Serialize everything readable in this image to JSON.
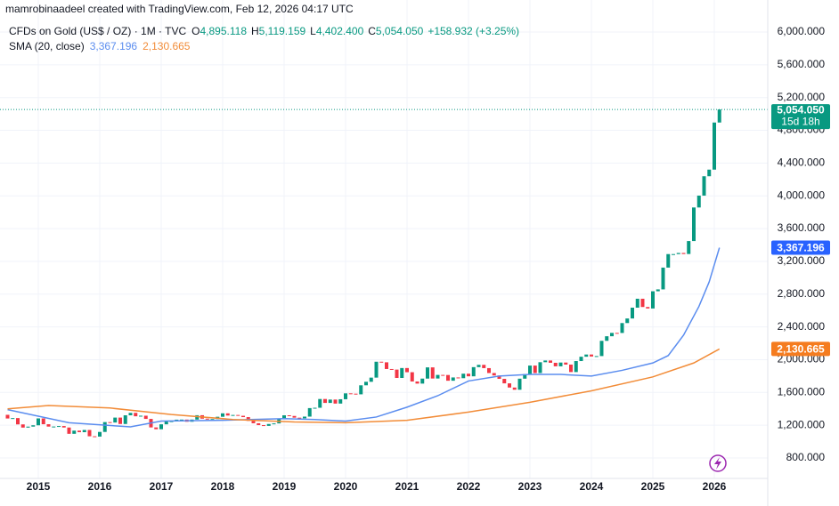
{
  "chart_data": {
    "type": "candlestick",
    "title": "mamrobinaadeel created with TradingView.com, Feb 12, 2026 04:17 UTC",
    "symbol": "CFDs on Gold (US$ / OZ) · 1M · TVC",
    "ohlc": [
      {
        "key": "O",
        "label": "4,895.118"
      },
      {
        "key": "H",
        "label": "5,119.159"
      },
      {
        "key": "L",
        "label": "4,402.400"
      },
      {
        "key": "C",
        "label": "5,054.050"
      }
    ],
    "change": "+158.932 (+3.25%)",
    "countdown": "15d 18h",
    "up_color": "#089981",
    "down_color": "#f23645",
    "categories": [
      null,
      null,
      null,
      null,
      null,
      null,
      "2015",
      null,
      null,
      null,
      null,
      null,
      null,
      null,
      null,
      null,
      null,
      null,
      "2016",
      null,
      null,
      null,
      null,
      null,
      null,
      null,
      null,
      null,
      null,
      null,
      "2017",
      null,
      null,
      null,
      null,
      null,
      null,
      null,
      null,
      null,
      null,
      null,
      "2018",
      null,
      null,
      null,
      null,
      null,
      null,
      null,
      null,
      null,
      null,
      null,
      "2019",
      null,
      null,
      null,
      null,
      null,
      null,
      null,
      null,
      null,
      null,
      null,
      "2020",
      null,
      null,
      null,
      null,
      null,
      null,
      null,
      null,
      null,
      null,
      null,
      "2021",
      null,
      null,
      null,
      null,
      null,
      null,
      null,
      null,
      null,
      null,
      null,
      "2022",
      null,
      null,
      null,
      null,
      null,
      null,
      null,
      null,
      null,
      null,
      null,
      "2023",
      null,
      null,
      null,
      null,
      null,
      null,
      null,
      null,
      null,
      null,
      null,
      "2024",
      null,
      null,
      null,
      null,
      null,
      null,
      null,
      null,
      null,
      null,
      null,
      "2025",
      null,
      null,
      null,
      null,
      null,
      null,
      null,
      null,
      null,
      null,
      null,
      "2026",
      null
    ],
    "open": 1327,
    "values": [
      1282,
      1287,
      1210,
      1171,
      1183,
      1199,
      1283,
      1212,
      1183,
      1184,
      1190,
      1172,
      1095,
      1134,
      1115,
      1142,
      1065,
      1061,
      1118,
      1238,
      1233,
      1293,
      1215,
      1321,
      1351,
      1309,
      1316,
      1277,
      1173,
      1151,
      1211,
      1249,
      1249,
      1268,
      1269,
      1242,
      1269,
      1322,
      1280,
      1271,
      1275,
      1303,
      1345,
      1318,
      1325,
      1315,
      1299,
      1253,
      1224,
      1201,
      1192,
      1215,
      1222,
      1282,
      1321,
      1313,
      1292,
      1284,
      1305,
      1409,
      1413,
      1520,
      1472,
      1513,
      1464,
      1517,
      1589,
      1585,
      1577,
      1687,
      1730,
      1781,
      1975,
      1968,
      1886,
      1879,
      1777,
      1898,
      1847,
      1734,
      1708,
      1769,
      1906,
      1770,
      1814,
      1813,
      1743,
      1783,
      1774,
      1829,
      1797,
      1909,
      1937,
      1897,
      1837,
      1807,
      1766,
      1711,
      1660,
      1633,
      1768,
      1824,
      1928,
      1837,
      1969,
      1990,
      1962,
      1919,
      1965,
      1940,
      1849,
      1983,
      2036,
      2063,
      2039,
      2044,
      2230,
      2286,
      2327,
      2326,
      2447,
      2503,
      2635,
      2744,
      2643,
      2625,
      2835,
      2858,
      3124,
      3289,
      3289,
      3303,
      3290,
      3448,
      3858,
      4003,
      4239,
      4320,
      4895,
      5054.05
    ],
    "indicator": "SMA (20, close)",
    "lines": [
      {
        "color": "#5b8def",
        "x": [
          0,
          12,
          24,
          30,
          42,
          54,
          60,
          66,
          72,
          78,
          84,
          90,
          96,
          102,
          108,
          114,
          120,
          126,
          129,
          132,
          135,
          137,
          139
        ],
        "values": [
          1390,
          1230,
          1180,
          1250,
          1260,
          1280,
          1270,
          1250,
          1300,
          1420,
          1560,
          1740,
          1800,
          1820,
          1820,
          1800,
          1870,
          1960,
          2050,
          2300,
          2650,
          2950,
          3367.196
        ],
        "value_label": "3,367.196",
        "badge_color": "#2962ff"
      },
      {
        "color": "#f28c38",
        "x": [
          0,
          8,
          20,
          32,
          44,
          56,
          66,
          78,
          90,
          102,
          114,
          126,
          134,
          139
        ],
        "values": [
          1400,
          1440,
          1410,
          1330,
          1270,
          1240,
          1230,
          1260,
          1360,
          1480,
          1620,
          1790,
          1960,
          2130.665
        ],
        "value_label": "2,130.665",
        "badge_color": "#f57c1f"
      }
    ],
    "ylim": [
      400,
      6250
    ],
    "yticks": [
      {
        "value": 800,
        "label": "800.000"
      },
      {
        "value": 1200,
        "label": "1,200.000"
      },
      {
        "value": 1600,
        "label": "1,600.000"
      },
      {
        "value": 2000,
        "label": "2,000.000"
      },
      {
        "value": 2400,
        "label": "2,400.000"
      },
      {
        "value": 2800,
        "label": "2,800.000"
      },
      {
        "value": 3200,
        "label": "3,200.000"
      },
      {
        "value": 3600,
        "label": "3,600.000"
      },
      {
        "value": 4000,
        "label": "4,000.000"
      },
      {
        "value": 4400,
        "label": "4,400.000"
      },
      {
        "value": 4800,
        "label": "4,800.000"
      },
      {
        "value": 5200,
        "label": "5,200.000"
      },
      {
        "value": 5600,
        "label": "5,600.000"
      },
      {
        "value": 6000,
        "label": "6,000.000"
      }
    ],
    "grid": true
  }
}
